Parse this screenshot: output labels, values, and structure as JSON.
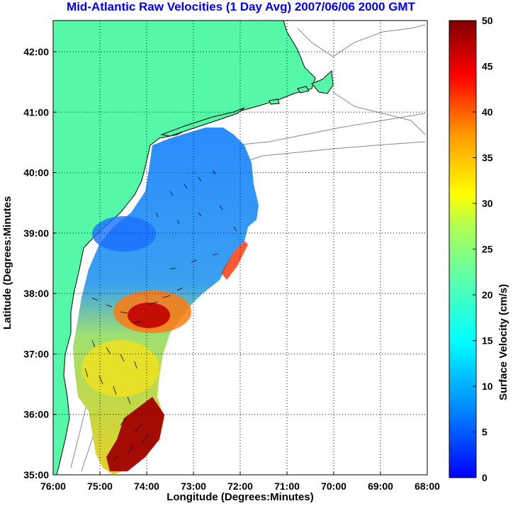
{
  "title": "Mid-Atlantic Raw Velocities (1 Day Avg) 2007/06/06 2000 GMT",
  "axes": {
    "xlabel": "Longitude (Degrees:Minutes)",
    "ylabel": "Latitude (Degrees:Minutes",
    "x_ticks": [
      "76:00",
      "75:00",
      "74:00",
      "73:00",
      "72:00",
      "71:00",
      "70:00",
      "69:00",
      "68:00"
    ],
    "y_ticks": [
      "42:00",
      "41:00",
      "40:00",
      "39:00",
      "38:00",
      "37:00",
      "36:00",
      "35:00"
    ],
    "grid": "dotted"
  },
  "colorbar": {
    "label": "Surface Velocity (cm/s)",
    "ticks": [
      "0",
      "5",
      "10",
      "15",
      "20",
      "25",
      "30",
      "35",
      "40",
      "45",
      "50"
    ],
    "range": [
      0,
      50
    ],
    "colormap": "jet"
  },
  "colors": {
    "land": "#55f7a8",
    "title": "#0000ff",
    "coast": "#000000",
    "bathymetry": "#888888"
  }
}
